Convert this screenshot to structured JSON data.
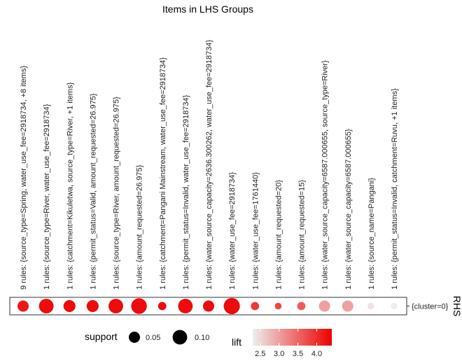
{
  "chart_data": {
    "type": "scatter",
    "title": "Items in LHS Groups",
    "rhs_axis_label": "RHS",
    "rhs_items": [
      "{cluster=0}"
    ],
    "lhs_groups": [
      {
        "label": "9 rules: {source_type=Spring, water_use_fee=2918734, +8 items}",
        "support": 0.05,
        "lift": 4.2
      },
      {
        "label": "1 rules: {source_type=River, water_use_fee=2918734}",
        "support": 0.1,
        "lift": 4.3
      },
      {
        "label": "1 rules: {catchment=Kikuletwa, source_type=River, +1 items}",
        "support": 0.06,
        "lift": 4.3
      },
      {
        "label": "1 rules: {permit_status=Valid, amount_requested=26.975}",
        "support": 0.06,
        "lift": 4.3
      },
      {
        "label": "1 rules: {source_type=River, amount_requested=26.975}",
        "support": 0.1,
        "lift": 4.3
      },
      {
        "label": "1 rules: {amount_requested=26.975}",
        "support": 0.12,
        "lift": 4.3
      },
      {
        "label": "1 rules: {catchment=Pangani Mainstream, water_use_fee=2918734}",
        "support": 0.02,
        "lift": 4.3
      },
      {
        "label": "1 rules: {permit_status=Invalid, water_use_fee=2918734}",
        "support": 0.1,
        "lift": 4.3
      },
      {
        "label": "1 rules: {water_source_capacity=2636.300262, water_use_fee=2918734}",
        "support": 0.05,
        "lift": 4.3
      },
      {
        "label": "1 rules: {water_use_fee=2918734}",
        "support": 0.13,
        "lift": 4.3
      },
      {
        "label": "1 rules: {water_use_fee=1761440}",
        "support": 0.02,
        "lift": 3.9
      },
      {
        "label": "1 rules: {amount_requested=20}",
        "support": 0.01,
        "lift": 3.8
      },
      {
        "label": "1 rules: {amount_requested=15}",
        "support": 0.02,
        "lift": 3.6
      },
      {
        "label": "1 rules: {water_source_capacity=6587.000655, source_type=River}",
        "support": 0.05,
        "lift": 3.0
      },
      {
        "label": "1 rules: {water_source_capacity=6587.000655}",
        "support": 0.05,
        "lift": 3.0
      },
      {
        "label": "1 rules: {source_name=Pangani}",
        "support": 0.01,
        "lift": 2.4
      },
      {
        "label": "1 rules: {permit_status=Invalid, catchment=Ruvu, +1 items}",
        "support": 0.01,
        "lift": 2.3
      }
    ],
    "legend_size": {
      "title": "support",
      "values": [
        0.05,
        0.1
      ],
      "labels": [
        "0.05",
        "0.10"
      ]
    },
    "legend_color": {
      "title": "lift",
      "range": [
        2.3,
        4.4
      ],
      "ticks": [
        2.5,
        3.0,
        3.5,
        4.0
      ],
      "tick_labels": [
        "2.5",
        "3.0",
        "3.5",
        "4.0"
      ],
      "low_color": "#eeeeee",
      "high_color": "#ee0000"
    }
  }
}
